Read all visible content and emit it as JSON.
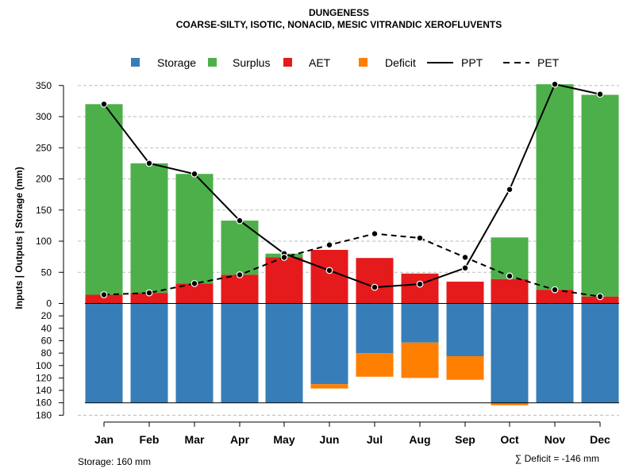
{
  "chart_data": {
    "type": "bar",
    "title": "DUNGENESS",
    "subtitle": "COARSE-SILTY, ISOTIC, NONACID, MESIC VITRANDIC XEROFLUVENTS",
    "ylabel": "Inputs | Outputs | Storage    (mm)",
    "categories": [
      "Jan",
      "Feb",
      "Mar",
      "Apr",
      "May",
      "Jun",
      "Jul",
      "Aug",
      "Sep",
      "Oct",
      "Nov",
      "Dec"
    ],
    "ylim_upper": [
      0,
      350
    ],
    "ylim_lower": [
      0,
      180
    ],
    "yticks_upper": [
      "0",
      "50",
      "100",
      "150",
      "200",
      "250",
      "300",
      "350"
    ],
    "yticks_lower": [
      "20",
      "40",
      "60",
      "80",
      "100",
      "120",
      "140",
      "160",
      "180"
    ],
    "legend": [
      {
        "name": "Storage",
        "kind": "box",
        "color": "#377EB8"
      },
      {
        "name": "Surplus",
        "kind": "box",
        "color": "#4DAF4A"
      },
      {
        "name": "AET",
        "kind": "box",
        "color": "#E41A1C"
      },
      {
        "name": "Deficit",
        "kind": "box",
        "color": "#FF7F00"
      },
      {
        "name": "PPT",
        "kind": "line",
        "color": "#000000"
      },
      {
        "name": "PET",
        "kind": "dashed",
        "color": "#000000"
      }
    ],
    "series": [
      {
        "name": "AET",
        "values": [
          14,
          17,
          32,
          46,
          74,
          86,
          73,
          48,
          35,
          39,
          22,
          11
        ]
      },
      {
        "name": "Surplus",
        "values": [
          306,
          208,
          176,
          87,
          6,
          0,
          0,
          0,
          0,
          67,
          330,
          324
        ]
      },
      {
        "name": "PPT",
        "values": [
          320,
          225,
          208,
          133,
          80,
          53,
          26,
          31,
          57,
          183,
          352,
          336
        ]
      },
      {
        "name": "PET",
        "values": [
          14,
          17,
          32,
          46,
          74,
          94,
          112,
          105,
          74,
          44,
          22,
          11
        ]
      },
      {
        "name": "Storage",
        "values": [
          160,
          160,
          160,
          160,
          160,
          130,
          80,
          63,
          85,
          160,
          160,
          160
        ]
      },
      {
        "name": "Deficit",
        "values": [
          0,
          0,
          0,
          0,
          0,
          7,
          38,
          57,
          38,
          4,
          0,
          0
        ]
      }
    ],
    "storage_capacity": 160,
    "footer_left": "Storage: 160 mm",
    "footer_right": "∑ Deficit = -146 mm"
  }
}
